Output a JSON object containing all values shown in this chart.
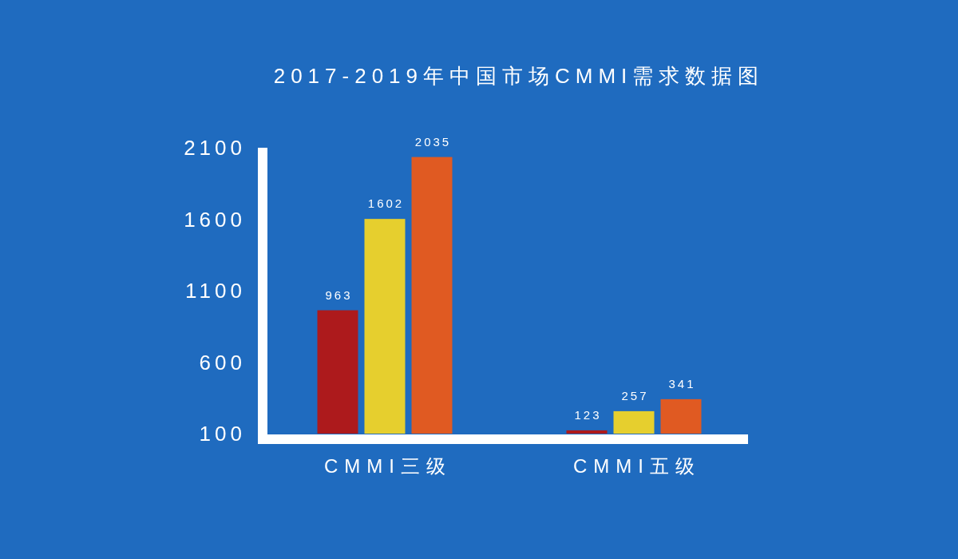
{
  "chart_data": {
    "type": "bar",
    "title": "2017-2019年中国市场CMMI需求数据图",
    "categories": [
      "CMMI三级",
      "CMMI五级"
    ],
    "series": [
      {
        "color": "#ad1a1c",
        "values": [
          963,
          123
        ]
      },
      {
        "color": "#e6cf2e",
        "values": [
          1602,
          257
        ]
      },
      {
        "color": "#e05a22",
        "values": [
          2035,
          341
        ]
      }
    ],
    "ylim": [
      100,
      2100
    ],
    "yticks": [
      100,
      600,
      1100,
      1600,
      2100
    ],
    "data_labels": true
  }
}
